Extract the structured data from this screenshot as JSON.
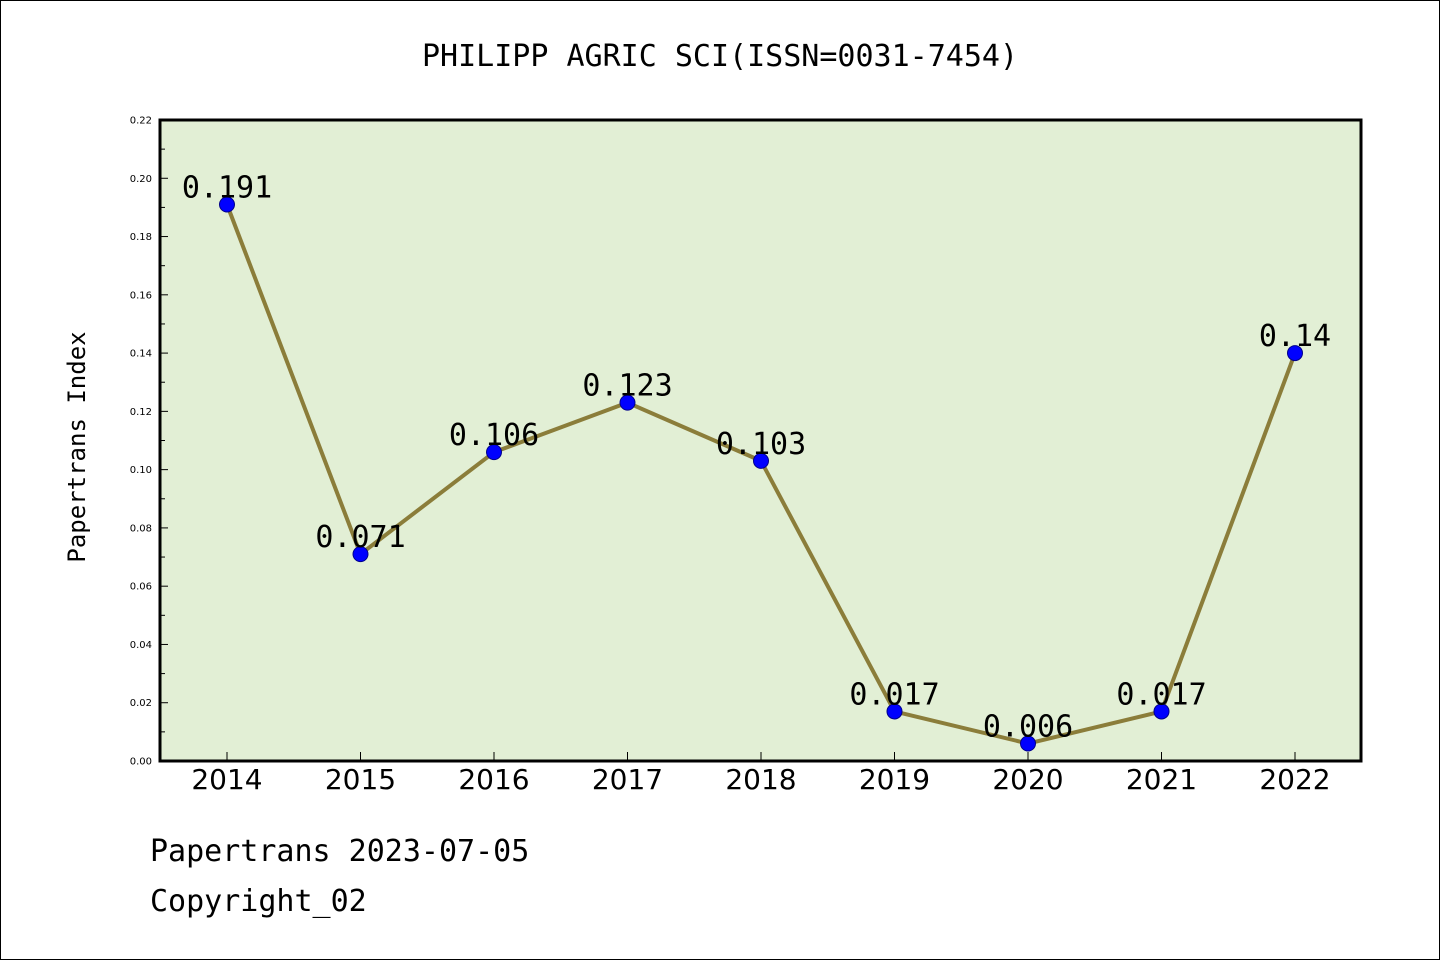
{
  "chart_data": {
    "type": "line",
    "title": "PHILIPP AGRIC SCI(ISSN=0031-7454)",
    "xlabel": "",
    "ylabel": "Papertrans Index",
    "categories": [
      "2014",
      "2015",
      "2016",
      "2017",
      "2018",
      "2019",
      "2020",
      "2021",
      "2022"
    ],
    "series": [
      {
        "values": [
          0.191,
          0.071,
          0.106,
          0.123,
          0.103,
          0.017,
          0.006,
          0.017,
          0.14
        ],
        "labels": [
          "0.191",
          "0.071",
          "0.106",
          "0.123",
          "0.103",
          "0.017",
          "0.006",
          "0.017",
          "0.14"
        ]
      }
    ],
    "ylim": [
      0,
      0.22
    ],
    "yticks": [
      0.0,
      0.02,
      0.04,
      0.06,
      0.08,
      0.1,
      0.12,
      0.14,
      0.16,
      0.18,
      0.2,
      0.22
    ],
    "ytick_labels": [
      "0.00",
      "0.02",
      "0.04",
      "0.06",
      "0.08",
      "0.10",
      "0.12",
      "0.14",
      "0.16",
      "0.18",
      "0.20",
      "0.22"
    ],
    "grid": false,
    "legend": "none",
    "colors": {
      "plot_background": "#e2efd5",
      "line": "#8b7d3a",
      "marker": "#0000ff",
      "marker_edge": "#00008b"
    }
  },
  "footer": {
    "line1": "Papertrans 2023-07-05",
    "line2": "Copyright_02"
  }
}
